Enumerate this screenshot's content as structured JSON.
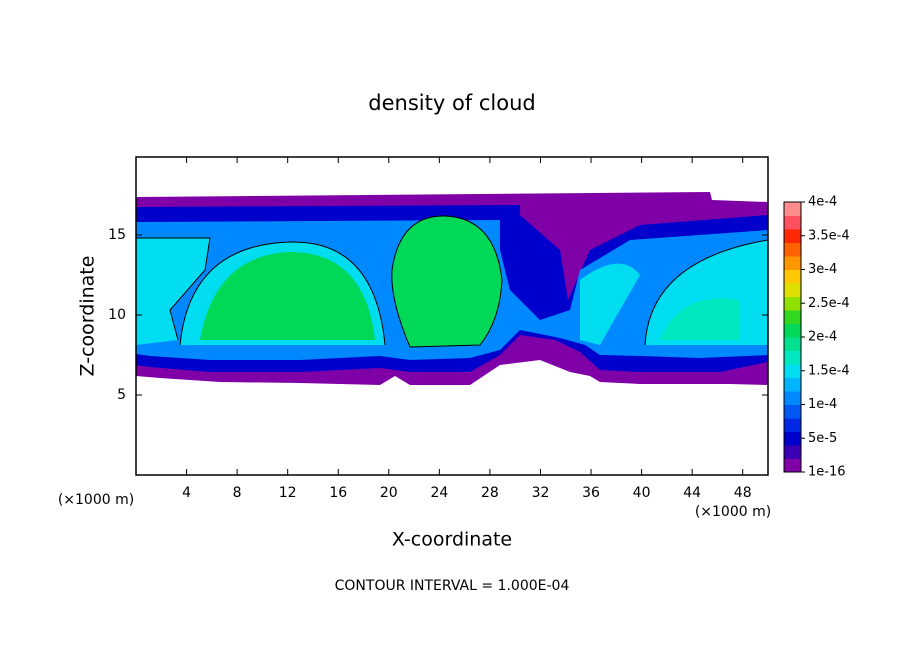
{
  "chart_data": {
    "type": "contour",
    "title": "density of cloud",
    "x_label": "X-coordinate",
    "y_label": "Z-coordinate",
    "x_unit": "(×1000 m)",
    "y_unit": "(×1000 m)",
    "annotation": "CONTOUR INTERVAL = 1.000E-04",
    "xlim": [
      0,
      50
    ],
    "ylim": [
      0,
      20
    ],
    "xticks": [
      4,
      8,
      12,
      16,
      20,
      24,
      28,
      32,
      36,
      40,
      44,
      48
    ],
    "yticks": [
      5,
      10,
      15
    ],
    "colorbar": {
      "ticks": [
        {
          "value": 0,
          "label": "1e-16"
        },
        {
          "value": 5e-05,
          "label": "5e-5"
        },
        {
          "value": 0.0001,
          "label": "1e-4"
        },
        {
          "value": 0.00015,
          "label": "1.5e-4"
        },
        {
          "value": 0.0002,
          "label": "2e-4"
        },
        {
          "value": 0.00025,
          "label": "2.5e-4"
        },
        {
          "value": 0.0003,
          "label": "3e-4"
        },
        {
          "value": 0.00035,
          "label": "3.5e-4"
        },
        {
          "value": 0.0004,
          "label": "4e-4"
        }
      ],
      "colors": [
        "#8000a8",
        "#3c00b4",
        "#0000cc",
        "#0028e6",
        "#0058f4",
        "#0088ff",
        "#00b4ff",
        "#00dcf0",
        "#00e8c0",
        "#00e090",
        "#00d858",
        "#30d820",
        "#90e000",
        "#e0e000",
        "#ffc800",
        "#ff9600",
        "#ff6000",
        "#ff2800",
        "#ff5060",
        "#ff8c8c"
      ]
    }
  }
}
